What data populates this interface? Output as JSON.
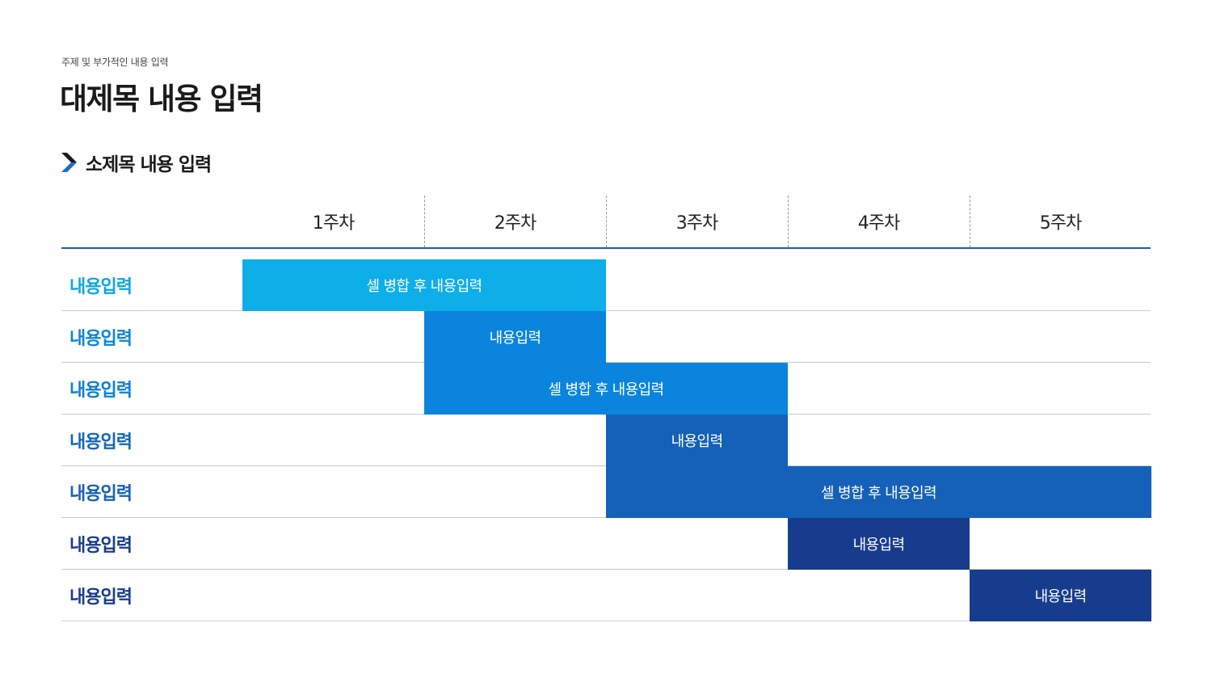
{
  "header": {
    "topic": "주제 및 부가적인 내용 입력",
    "title": "대제목 내용 입력",
    "subtitle": "소제목 내용 입력"
  },
  "icons": {
    "subtitle_marker": "chevron-right-icon"
  },
  "schedule": {
    "weeks": [
      "1주차",
      "2주차",
      "3주차",
      "4주차",
      "5주차"
    ],
    "rows": [
      {
        "label": "내용입력",
        "label_color": "#0EA5E4",
        "bar": {
          "text": "셀 병합 후 내용입력",
          "start_week": 1,
          "end_week": 2,
          "color": "#0EAEE9"
        }
      },
      {
        "label": "내용입력",
        "label_color": "#0B86D8",
        "bar": {
          "text": "내용입력",
          "start_week": 2,
          "end_week": 2,
          "color": "#0A84DC"
        }
      },
      {
        "label": "내용입력",
        "label_color": "#0B7FD6",
        "bar": {
          "text": "셀 병합 후 내용입력",
          "start_week": 2,
          "end_week": 3,
          "color": "#0A84DC"
        }
      },
      {
        "label": "내용입력",
        "label_color": "#1466BC",
        "bar": {
          "text": "내용입력",
          "start_week": 3,
          "end_week": 3,
          "color": "#1560B8"
        }
      },
      {
        "label": "내용입력",
        "label_color": "#1560B8",
        "bar": {
          "text": "셀 병합 후 내용입력",
          "start_week": 3,
          "end_week": 5,
          "color": "#1560B8"
        }
      },
      {
        "label": "내용입력",
        "label_color": "#173C8C",
        "bar": {
          "text": "내용입력",
          "start_week": 4,
          "end_week": 4,
          "color": "#173C8E"
        }
      },
      {
        "label": "내용입력",
        "label_color": "#173C8C",
        "bar": {
          "text": "내용입력",
          "start_week": 5,
          "end_week": 5,
          "color": "#173C8E"
        }
      }
    ]
  },
  "colors": {
    "header_rule": "#1A5FB4",
    "row_rule": "#C8C8C8"
  }
}
